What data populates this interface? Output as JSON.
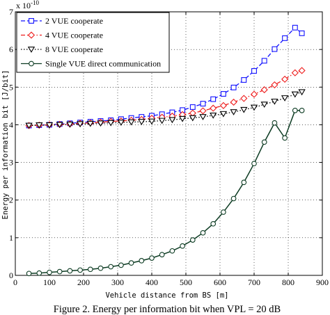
{
  "chart_data": {
    "type": "line",
    "multiplier": "x 10",
    "exponent": "-10",
    "xlabel": "Vehicle distance from BS [m]",
    "ylabel": "Energy per information bit [J/bit]",
    "caption": "Figure 2.  Energy per information bit when VPL = 20 dB",
    "xlim": [
      0,
      900
    ],
    "ylim": [
      0,
      7
    ],
    "xticks": [
      0,
      100,
      200,
      300,
      400,
      500,
      600,
      700,
      800,
      900
    ],
    "yticks": [
      0,
      1,
      2,
      3,
      4,
      5,
      6,
      7
    ],
    "grid": true,
    "legend_position": "top-left",
    "x": [
      40,
      70,
      100,
      130,
      160,
      190,
      220,
      250,
      280,
      310,
      340,
      370,
      400,
      430,
      460,
      490,
      520,
      550,
      580,
      610,
      640,
      670,
      700,
      730,
      760,
      790,
      820,
      840
    ],
    "series": [
      {
        "name": "2 VUE cooperate",
        "color": "#1010ff",
        "marker": "square",
        "dash": "dashed",
        "values": [
          3.98,
          3.99,
          4.0,
          4.02,
          4.04,
          4.06,
          4.08,
          4.1,
          4.12,
          4.15,
          4.18,
          4.21,
          4.24,
          4.28,
          4.33,
          4.39,
          4.47,
          4.56,
          4.68,
          4.82,
          4.99,
          5.19,
          5.43,
          5.7,
          6.01,
          6.3,
          6.58,
          6.43
        ]
      },
      {
        "name": "4 VUE cooperate",
        "color": "#ee1c1c",
        "marker": "diamond",
        "dash": "dashdot",
        "values": [
          3.98,
          3.99,
          4.0,
          4.01,
          4.02,
          4.04,
          4.05,
          4.07,
          4.09,
          4.1,
          4.12,
          4.14,
          4.17,
          4.2,
          4.23,
          4.27,
          4.31,
          4.37,
          4.44,
          4.51,
          4.6,
          4.7,
          4.81,
          4.93,
          5.06,
          5.21,
          5.38,
          5.44
        ]
      },
      {
        "name": "8 VUE cooperate",
        "color": "#000000",
        "marker": "triangle-down",
        "dash": "dotted",
        "values": [
          3.98,
          3.99,
          3.99,
          4.0,
          4.01,
          4.02,
          4.03,
          4.04,
          4.05,
          4.06,
          4.07,
          4.08,
          4.09,
          4.11,
          4.13,
          4.16,
          4.18,
          4.21,
          4.25,
          4.29,
          4.34,
          4.4,
          4.46,
          4.54,
          4.62,
          4.71,
          4.81,
          4.87
        ]
      },
      {
        "name": "Single VUE direct communication",
        "color": "#0c3b22",
        "marker": "circle",
        "dash": "solid",
        "values": [
          0.05,
          0.06,
          0.08,
          0.1,
          0.12,
          0.14,
          0.16,
          0.19,
          0.23,
          0.27,
          0.33,
          0.39,
          0.46,
          0.55,
          0.65,
          0.78,
          0.94,
          1.13,
          1.37,
          1.68,
          2.04,
          2.47,
          2.97,
          3.54,
          4.05,
          3.65,
          4.38,
          4.38
        ]
      }
    ]
  }
}
